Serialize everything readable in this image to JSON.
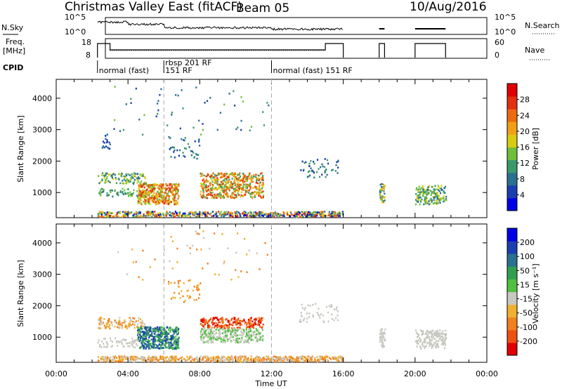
{
  "header": {
    "title": "Christmas Valley East (fitACF)",
    "beam": "Beam 05",
    "date": "10/Aug/2016"
  },
  "strips": {
    "nsky_label": "N.Sky",
    "nsky_ticks": [
      "10^5",
      "10^0"
    ],
    "nsky_right_ticks": [
      "10^5",
      "10^0"
    ],
    "nsearch_label": "N.Search",
    "freq_label_1": "Freq.",
    "freq_label_2": "[MHz]",
    "freq_ticks": [
      "18",
      "8"
    ],
    "nave_ticks": [
      "60",
      "0"
    ],
    "nave_label": "Nave",
    "cpid_label": "CPID",
    "cpid_segments": [
      {
        "text": "normal (fast)",
        "start_hour": 2.3
      },
      {
        "text": "151 RF",
        "start_hour": 6.0,
        "upper_text": "rbsp 201 RF"
      },
      {
        "text": "normal (fast) 151 RF",
        "start_hour": 12.0
      }
    ]
  },
  "colors": {
    "power_scale": [
      "#0000e6",
      "#1a3fb0",
      "#2a7090",
      "#3a9a6a",
      "#6fbf3a",
      "#d8cc10",
      "#f0a018",
      "#ee6a10",
      "#e23010",
      "#e00000"
    ],
    "velocity_scale": [
      "#e00000",
      "#ee5010",
      "#f08020",
      "#f0b030",
      "#c8c8c0",
      "#50c040",
      "#30a050",
      "#2a7090",
      "#1a3fb0",
      "#0000e6"
    ]
  },
  "chart_data": [
    {
      "type": "heatmap",
      "name_field": "power",
      "ylabel": "Slant Range [km]",
      "yticks": [
        "1000",
        "2000",
        "3000",
        "4000"
      ],
      "ylim": [
        200,
        4600
      ],
      "xlim_hours": [
        0,
        24
      ],
      "colorbar_label": "Power [dB]",
      "colorbar_ticks": [
        "4",
        "8",
        "12",
        "16",
        "20",
        "24",
        "28"
      ],
      "colorbar_range": [
        0,
        30
      ]
    },
    {
      "type": "heatmap",
      "name_field": "velocity",
      "ylabel": "Slant Range [km]",
      "yticks": [
        "1000",
        "2000",
        "3000",
        "4000"
      ],
      "ylim": [
        200,
        4600
      ],
      "xlim_hours": [
        0,
        24
      ],
      "colorbar_label": "Velocity [m s⁻¹]",
      "colorbar_ticks": [
        "200",
        "100",
        "50",
        "15",
        "-15",
        "-50",
        "-100",
        "-200"
      ]
    }
  ],
  "xaxis": {
    "label": "Time UT",
    "ticks": [
      "00:00",
      "04:00",
      "08:00",
      "12:00",
      "16:00",
      "20:00",
      "00:00"
    ]
  }
}
